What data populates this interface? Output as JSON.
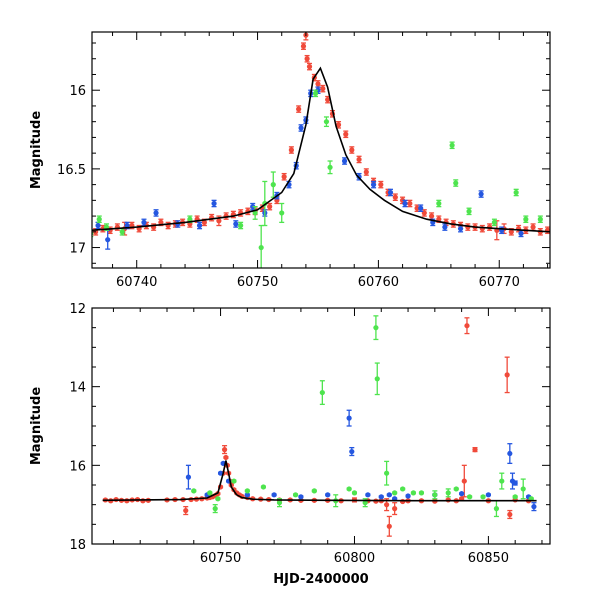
{
  "colors": {
    "red": "#f04a3a",
    "blue": "#2557e0",
    "green": "#4ee44e",
    "model": "#000000"
  },
  "chart_data": [
    {
      "type": "scatter",
      "panel": "top",
      "xlabel": "",
      "ylabel": "Magnitude",
      "xlim": [
        60736.3,
        60774.2
      ],
      "ylim": [
        17.13,
        15.63
      ],
      "y_inverted": true,
      "xticks": [
        60740,
        60750,
        60760,
        60770
      ],
      "xtick_labels": [
        "60740",
        "60750",
        "60760",
        "60770"
      ],
      "yticks": [
        16,
        16.5,
        17
      ],
      "ytick_labels": [
        "16",
        "16.5",
        "17"
      ],
      "model": {
        "x": [
          60736.3,
          60740,
          60744,
          60748,
          60750,
          60752,
          60753,
          60754,
          60754.6,
          60755.2,
          60755.8,
          60756.5,
          60757.3,
          60758.2,
          60759.3,
          60760.5,
          60762,
          60764,
          60766,
          60768,
          60770,
          60772,
          60774.2
        ],
        "y": [
          16.89,
          16.87,
          16.84,
          16.8,
          16.76,
          16.65,
          16.53,
          16.22,
          15.93,
          15.86,
          15.98,
          16.23,
          16.41,
          16.54,
          16.63,
          16.7,
          16.77,
          16.82,
          16.85,
          16.87,
          16.88,
          16.89,
          16.9
        ]
      },
      "series": [
        {
          "color_key": "red",
          "x": [
            60736.6,
            60737.2,
            60737.8,
            60738.4,
            60739.0,
            60739.6,
            60740.2,
            60740.8,
            60741.4,
            60742.0,
            60742.6,
            60743.2,
            60743.8,
            60744.4,
            60745.0,
            60745.6,
            60746.2,
            60746.8,
            60747.4,
            60748.0,
            60748.6,
            60749.2,
            60749.8,
            60750.4,
            60751.0,
            60751.6,
            60752.2,
            60752.8,
            60753.4,
            60753.8,
            60754.0,
            60754.1,
            60754.3,
            60754.7,
            60755.0,
            60755.4,
            60755.8,
            60756.2,
            60756.7,
            60757.3,
            60757.8,
            60758.4,
            60759.0,
            60759.6,
            60760.2,
            60760.8,
            60761.4,
            60762.0,
            60762.6,
            60763.2,
            60763.8,
            60764.4,
            60765.0,
            60765.6,
            60766.2,
            60766.8,
            60767.4,
            60768.0,
            60768.6,
            60769.2,
            60769.8,
            60770.4,
            60771.0,
            60771.6,
            60772.2,
            60772.8,
            60773.4,
            60774.0
          ],
          "y": [
            16.9,
            16.88,
            16.89,
            16.87,
            16.88,
            16.86,
            16.88,
            16.86,
            16.87,
            16.84,
            16.86,
            16.85,
            16.84,
            16.85,
            16.82,
            16.84,
            16.81,
            16.83,
            16.8,
            16.79,
            16.78,
            16.77,
            16.77,
            16.75,
            16.74,
            16.7,
            16.55,
            16.38,
            16.12,
            15.72,
            15.65,
            15.8,
            15.85,
            15.92,
            15.96,
            15.99,
            16.06,
            16.15,
            16.22,
            16.28,
            16.38,
            16.44,
            16.52,
            16.58,
            16.6,
            16.65,
            16.68,
            16.7,
            16.72,
            16.75,
            16.78,
            16.8,
            16.82,
            16.84,
            16.85,
            16.86,
            16.87,
            16.87,
            16.88,
            16.87,
            16.89,
            16.88,
            16.9,
            16.88,
            16.89,
            16.87,
            16.9,
            16.89
          ],
          "err": [
            0.02,
            0.02,
            0.02,
            0.02,
            0.04,
            0.02,
            0.02,
            0.02,
            0.02,
            0.02,
            0.02,
            0.02,
            0.02,
            0.02,
            0.02,
            0.02,
            0.02,
            0.03,
            0.02,
            0.02,
            0.02,
            0.02,
            0.02,
            0.02,
            0.02,
            0.02,
            0.02,
            0.02,
            0.02,
            0.02,
            0.03,
            0.02,
            0.02,
            0.02,
            0.02,
            0.02,
            0.02,
            0.02,
            0.02,
            0.02,
            0.02,
            0.02,
            0.02,
            0.02,
            0.02,
            0.02,
            0.02,
            0.02,
            0.02,
            0.02,
            0.02,
            0.02,
            0.02,
            0.02,
            0.02,
            0.02,
            0.02,
            0.02,
            0.02,
            0.02,
            0.06,
            0.03,
            0.02,
            0.02,
            0.02,
            0.02,
            0.02,
            0.02
          ]
        },
        {
          "color_key": "blue",
          "x": [
            60736.8,
            60737.6,
            60739.2,
            60740.6,
            60741.6,
            60743.4,
            60745.2,
            60746.4,
            60748.2,
            60749.6,
            60750.6,
            60751.6,
            60752.6,
            60753.2,
            60753.6,
            60754.0,
            60754.4,
            60755.0,
            60757.2,
            60758.4,
            60759.6,
            60761.0,
            60762.2,
            60763.5,
            60764.5,
            60765.5,
            60766.8,
            60768.5,
            60770.2,
            60771.8
          ],
          "y": [
            16.86,
            16.95,
            16.86,
            16.84,
            16.78,
            16.85,
            16.86,
            16.72,
            16.85,
            16.74,
            16.78,
            16.67,
            16.6,
            16.48,
            16.24,
            16.19,
            16.02,
            16.0,
            16.45,
            16.55,
            16.6,
            16.65,
            16.72,
            16.75,
            16.84,
            16.87,
            16.88,
            16.66,
            16.89,
            16.91
          ],
          "err": [
            0.02,
            0.06,
            0.02,
            0.02,
            0.02,
            0.02,
            0.02,
            0.02,
            0.02,
            0.02,
            0.02,
            0.02,
            0.02,
            0.02,
            0.02,
            0.02,
            0.02,
            0.02,
            0.02,
            0.02,
            0.02,
            0.02,
            0.02,
            0.02,
            0.02,
            0.02,
            0.02,
            0.02,
            0.02,
            0.02
          ]
        },
        {
          "color_key": "green",
          "x": [
            60736.2,
            60736.9,
            60737.5,
            60738.8,
            60744.4,
            60748.6,
            60749.8,
            60750.3,
            60750.6,
            60751.3,
            60752.0,
            60754.8,
            60755.7,
            60756.0,
            60765.0,
            60766.1,
            60766.4,
            60767.5,
            60769.6,
            60771.4,
            60772.2,
            60773.4
          ],
          "y": [
            16.91,
            16.82,
            16.87,
            16.9,
            16.82,
            16.86,
            16.78,
            17.0,
            16.72,
            16.6,
            16.78,
            16.02,
            16.2,
            16.49,
            16.72,
            16.35,
            16.59,
            16.77,
            16.84,
            16.65,
            16.82,
            16.82
          ],
          "err": [
            0.02,
            0.02,
            0.02,
            0.02,
            0.02,
            0.02,
            0.04,
            0.14,
            0.14,
            0.08,
            0.06,
            0.02,
            0.03,
            0.04,
            0.02,
            0.02,
            0.02,
            0.02,
            0.02,
            0.02,
            0.02,
            0.02
          ]
        }
      ]
    },
    {
      "type": "scatter",
      "panel": "bottom",
      "xlabel": "HJD-2400000",
      "ylabel": "Magnitude",
      "xlim": [
        60702,
        60873
      ],
      "ylim": [
        18,
        12
      ],
      "y_inverted": true,
      "xticks": [
        60750,
        60800,
        60850
      ],
      "xtick_labels": [
        "60750",
        "60800",
        "60850"
      ],
      "yticks": [
        12,
        14,
        16,
        18
      ],
      "ytick_labels": [
        "12",
        "14",
        "16",
        "18"
      ],
      "model": {
        "x": [
          60706,
          60720,
          60735,
          60745,
          60749,
          60751,
          60752,
          60753,
          60754,
          60756,
          60758,
          60762,
          60770,
          60790,
          60820,
          60868
        ],
        "y": [
          16.89,
          16.88,
          16.87,
          16.83,
          16.7,
          16.2,
          15.88,
          16.2,
          16.55,
          16.75,
          16.82,
          16.86,
          16.88,
          16.89,
          16.9,
          16.9
        ]
      },
      "series": [
        {
          "color_key": "red",
          "x": [
            60707,
            60709,
            60711,
            60713,
            60715,
            60717,
            60719,
            60721,
            60723,
            60730,
            60733,
            60736,
            60737,
            60739,
            60741,
            60743,
            60745,
            60746,
            60747,
            60748,
            60749,
            60750,
            60751,
            60751.5,
            60752,
            60752.5,
            60753,
            60753.5,
            60754,
            60755,
            60756,
            60757,
            60758,
            60760,
            60762,
            60765,
            60768,
            60772,
            60776,
            60780,
            60785,
            60790,
            60795,
            60800,
            60805,
            60808,
            60810,
            60812,
            60813,
            60815,
            60818,
            60820,
            60825,
            60830,
            60835,
            60838,
            60840,
            60841,
            60842,
            60845,
            60850,
            60857,
            60858,
            60860,
            60865
          ],
          "y": [
            16.88,
            16.9,
            16.87,
            16.89,
            16.9,
            16.88,
            16.87,
            16.9,
            16.89,
            16.88,
            16.87,
            16.87,
            17.15,
            16.87,
            16.86,
            16.85,
            16.83,
            16.82,
            16.8,
            16.77,
            16.72,
            16.55,
            16.2,
            15.6,
            15.8,
            16.0,
            16.2,
            16.4,
            16.5,
            16.62,
            16.7,
            16.75,
            16.79,
            16.82,
            16.85,
            16.86,
            16.87,
            16.88,
            16.88,
            16.89,
            16.89,
            16.89,
            16.9,
            16.88,
            16.9,
            16.91,
            16.9,
            17.0,
            17.55,
            17.1,
            16.92,
            16.9,
            16.9,
            16.91,
            16.88,
            16.9,
            16.85,
            16.4,
            12.45,
            15.6,
            16.9,
            13.7,
            17.25,
            16.88,
            16.9
          ],
          "err": [
            0.02,
            0.02,
            0.02,
            0.02,
            0.02,
            0.02,
            0.02,
            0.02,
            0.02,
            0.02,
            0.02,
            0.02,
            0.1,
            0.02,
            0.02,
            0.02,
            0.02,
            0.02,
            0.02,
            0.02,
            0.02,
            0.02,
            0.02,
            0.1,
            0.02,
            0.02,
            0.02,
            0.02,
            0.02,
            0.02,
            0.02,
            0.02,
            0.02,
            0.02,
            0.02,
            0.02,
            0.02,
            0.02,
            0.02,
            0.02,
            0.02,
            0.02,
            0.02,
            0.05,
            0.02,
            0.02,
            0.02,
            0.15,
            0.25,
            0.15,
            0.02,
            0.02,
            0.02,
            0.02,
            0.02,
            0.02,
            0.02,
            0.4,
            0.2,
            0.05,
            0.02,
            0.45,
            0.1,
            0.02,
            0.02
          ]
        },
        {
          "color_key": "blue",
          "x": [
            60738,
            60745,
            60750,
            60751,
            60753,
            60760,
            60770,
            60780,
            60790,
            60798,
            60799,
            60805,
            60810,
            60813,
            60815,
            60820,
            60830,
            60840,
            60850,
            60858,
            60859,
            60860,
            60865,
            60867
          ],
          "y": [
            16.3,
            16.75,
            16.2,
            15.95,
            16.4,
            16.75,
            16.75,
            16.8,
            16.75,
            14.8,
            15.65,
            16.75,
            16.8,
            16.75,
            16.85,
            16.78,
            16.75,
            16.72,
            16.75,
            15.7,
            16.4,
            16.45,
            16.8,
            17.05
          ],
          "err": [
            0.3,
            0.02,
            0.02,
            0.02,
            0.02,
            0.02,
            0.02,
            0.02,
            0.02,
            0.2,
            0.1,
            0.02,
            0.02,
            0.02,
            0.02,
            0.02,
            0.02,
            0.02,
            0.02,
            0.25,
            0.2,
            0.05,
            0.02,
            0.1
          ]
        },
        {
          "color_key": "green",
          "x": [
            60740,
            60746,
            60748,
            60749,
            60755,
            60760,
            60766,
            60772,
            60778,
            60785,
            60788,
            60793,
            60798,
            60800,
            60804,
            60808,
            60808.5,
            60812,
            60815,
            60818,
            60822,
            60825,
            60830,
            60835,
            60838,
            60843,
            60848,
            60853,
            60855,
            60860,
            60863,
            60866
          ],
          "y": [
            16.65,
            16.7,
            17.1,
            16.85,
            16.4,
            16.65,
            16.55,
            16.95,
            16.75,
            16.65,
            14.15,
            16.9,
            16.6,
            16.7,
            16.95,
            12.5,
            13.8,
            16.2,
            16.7,
            16.6,
            16.7,
            16.7,
            16.75,
            16.7,
            16.6,
            16.8,
            16.8,
            17.1,
            16.4,
            16.8,
            16.6,
            16.85
          ],
          "err": [
            0.02,
            0.02,
            0.1,
            0.02,
            0.02,
            0.02,
            0.02,
            0.1,
            0.02,
            0.02,
            0.3,
            0.15,
            0.02,
            0.02,
            0.1,
            0.3,
            0.4,
            0.3,
            0.02,
            0.02,
            0.02,
            0.02,
            0.1,
            0.1,
            0.02,
            0.02,
            0.02,
            0.2,
            0.2,
            0.02,
            0.25,
            0.02
          ]
        }
      ]
    }
  ]
}
